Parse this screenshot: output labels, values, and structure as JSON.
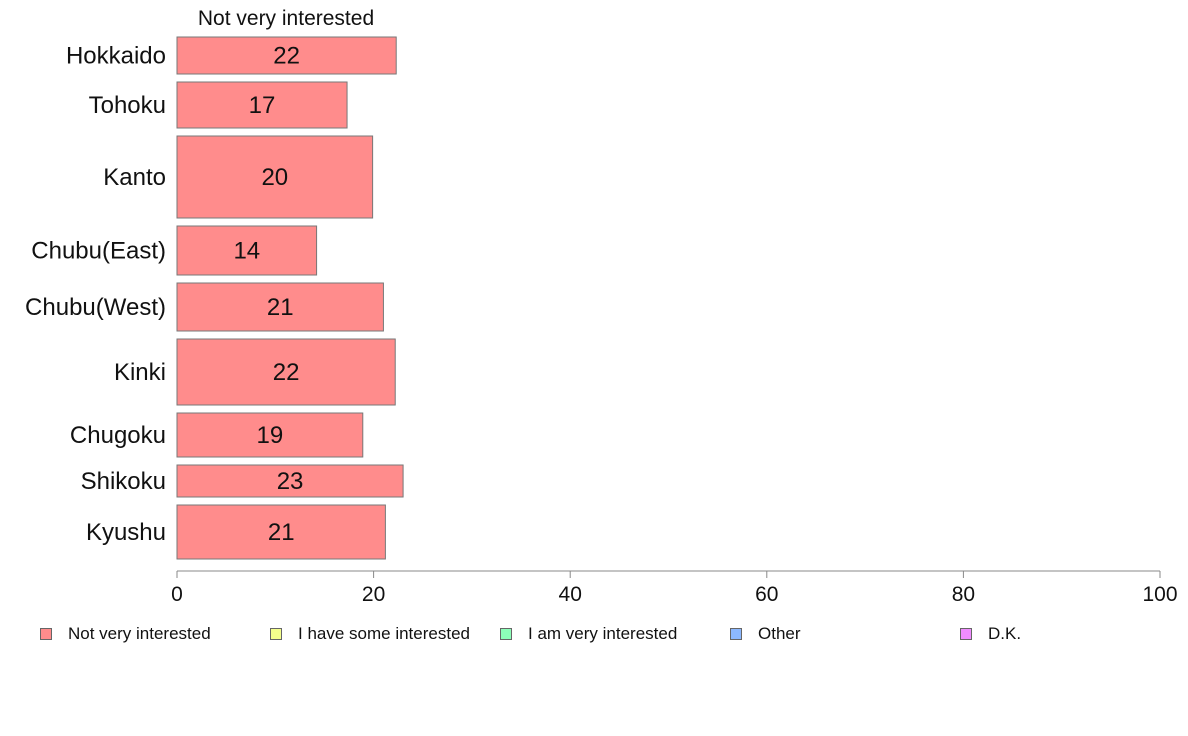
{
  "chart_data": {
    "type": "bar",
    "orientation": "horizontal",
    "panel_title": "Not very interested",
    "categories": [
      "Hokkaido",
      "Tohoku",
      "Kanto",
      "Chubu(East)",
      "Chubu(West)",
      "Kinki",
      "Chugoku",
      "Shikoku",
      "Kyushu"
    ],
    "series": [
      {
        "name": "Not very interested",
        "values": [
          22.3,
          17.3,
          19.9,
          14.2,
          21.0,
          22.2,
          18.9,
          23.0,
          21.2
        ],
        "labels": [
          "22",
          "17",
          "20",
          "14",
          "21",
          "22",
          "19",
          "23",
          "21"
        ],
        "color": "#ff8c8c"
      }
    ],
    "xlim": [
      0,
      100
    ],
    "xticks": [
      "0",
      "20",
      "40",
      "60",
      "80",
      "100"
    ],
    "xlabel": "",
    "ylabel": "",
    "grid": false,
    "legend_position": "bottom",
    "legend": [
      {
        "label": "Not very interested",
        "color": "#ff8c8c"
      },
      {
        "label": "I have some interested",
        "color": "#f4ff8c"
      },
      {
        "label": "I am very interested",
        "color": "#8cffb8"
      },
      {
        "label": "Other",
        "color": "#8cb8ff"
      },
      {
        "label": "D.K.",
        "color": "#f08cff"
      }
    ]
  }
}
